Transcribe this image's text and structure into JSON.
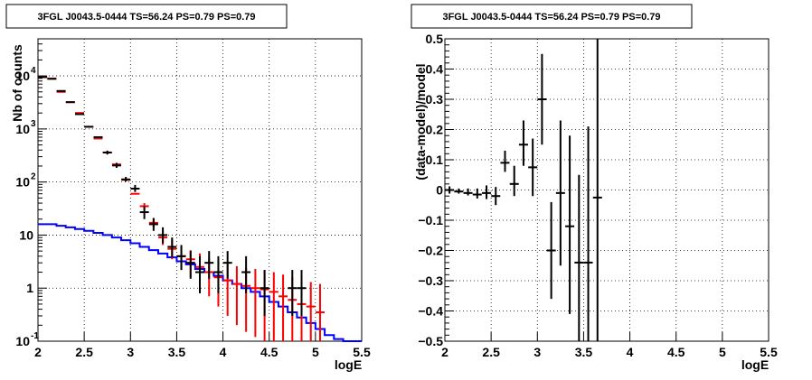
{
  "colors": {
    "data": "#000000",
    "model": "#ff0000",
    "background_model": "#0000ff",
    "grid": "#000000",
    "frame": "#000000"
  },
  "chart_data": [
    {
      "type": "line",
      "title": "3FGL J0043.5-0444 TS=56.24 PS=0.79 PS=0.79",
      "xlabel": "logE",
      "ylabel": "Nb of counts",
      "xlim": [
        2,
        5.5
      ],
      "ylim": [
        0.1,
        50000
      ],
      "yscale": "log",
      "grid": true,
      "x_ticks": [
        "2",
        "2.5",
        "3",
        "3.5",
        "4",
        "4.5",
        "5",
        "5.5"
      ],
      "y_ticks": [
        {
          "value": 0.1,
          "label": "10",
          "exp": "-1"
        },
        {
          "value": 1,
          "label": "1",
          "exp": ""
        },
        {
          "value": 10,
          "label": "10",
          "exp": ""
        },
        {
          "value": 100,
          "label": "10",
          "exp": "2"
        },
        {
          "value": 1000,
          "label": "10",
          "exp": "3"
        },
        {
          "value": 10000,
          "label": "10",
          "exp": "4"
        }
      ],
      "series": [
        {
          "kind": "data_points",
          "color": "#000000",
          "x": [
            2.05,
            2.15,
            2.25,
            2.35,
            2.45,
            2.55,
            2.65,
            2.75,
            2.85,
            2.95,
            3.05,
            3.15,
            3.25,
            3.35,
            3.45,
            3.55,
            3.65,
            3.75,
            3.85,
            3.95,
            4.05,
            4.25,
            4.45,
            4.75,
            4.85
          ],
          "y": [
            9500,
            8800,
            5200,
            3200,
            1900,
            1100,
            700,
            360,
            205,
            112,
            75,
            27,
            16,
            10,
            6,
            4,
            3,
            2,
            3,
            2,
            3,
            2,
            1,
            1,
            1
          ],
          "y_low": [
            null,
            null,
            null,
            null,
            null,
            null,
            null,
            330,
            185,
            102,
            65,
            20,
            12,
            7,
            3.8,
            2.2,
            1.5,
            0.8,
            1.5,
            0.8,
            1.5,
            0.8,
            0.3,
            0.3,
            0.3
          ],
          "y_high": [
            null,
            null,
            null,
            null,
            null,
            null,
            null,
            390,
            230,
            125,
            88,
            35,
            21,
            14,
            9,
            6.5,
            5,
            4,
            5,
            4,
            5,
            4,
            2.2,
            2.2,
            2.2
          ]
        },
        {
          "kind": "model_points",
          "color": "#ff0000",
          "x": [
            2.05,
            2.15,
            2.25,
            2.35,
            2.45,
            2.55,
            2.65,
            2.75,
            2.85,
            2.95,
            3.05,
            3.15,
            3.25,
            3.35,
            3.45,
            3.55,
            3.65,
            3.75,
            3.85,
            3.95,
            4.05,
            4.15,
            4.25,
            4.35,
            4.45,
            4.55,
            4.65,
            4.75,
            4.85,
            4.95,
            5.05
          ],
          "y": [
            9500,
            8900,
            5000,
            3200,
            2000,
            1100,
            660,
            360,
            215,
            110,
            60,
            35,
            17,
            9,
            5.5,
            4,
            3.5,
            2.5,
            2,
            1.6,
            1.4,
            1.2,
            1.1,
            1,
            0.95,
            0.85,
            0.7,
            0.6,
            0.5,
            0.45,
            0.35
          ],
          "y_low": [
            null,
            null,
            null,
            null,
            null,
            null,
            null,
            null,
            null,
            null,
            null,
            30,
            14,
            6.5,
            3.5,
            2.2,
            1.6,
            1.0,
            0.7,
            0.45,
            0.3,
            0.2,
            0.15,
            0.12,
            0.1,
            0.1,
            0.1,
            0.1,
            0.1,
            0.1,
            0.1
          ],
          "y_high": [
            null,
            null,
            null,
            null,
            null,
            null,
            null,
            null,
            null,
            null,
            null,
            40,
            21,
            12,
            8,
            6,
            5.2,
            4.5,
            3.7,
            3.2,
            2.8,
            2.6,
            2.4,
            2.3,
            2.2,
            2.0,
            1.8,
            1.6,
            1.4,
            1.3,
            1.2
          ]
        },
        {
          "kind": "background_step",
          "color": "#0000ff",
          "edges": [
            2.0,
            2.1,
            2.2,
            2.3,
            2.4,
            2.5,
            2.6,
            2.7,
            2.8,
            2.9,
            3.0,
            3.1,
            3.2,
            3.3,
            3.4,
            3.5,
            3.6,
            3.7,
            3.8,
            3.9,
            4.0,
            4.1,
            4.2,
            4.3,
            4.4,
            4.5,
            4.6,
            4.7,
            4.8,
            4.9,
            5.0,
            5.1,
            5.2,
            5.3,
            5.4,
            5.5
          ],
          "values": [
            16,
            16,
            15,
            14,
            13,
            12,
            11,
            10,
            9,
            8,
            7,
            6,
            5.2,
            4.5,
            3.8,
            3.2,
            2.8,
            2.3,
            2,
            1.7,
            1.4,
            1.2,
            1.0,
            0.85,
            0.7,
            0.55,
            0.45,
            0.35,
            0.28,
            0.22,
            0.17,
            0.13,
            0.11,
            0.1,
            0.1
          ]
        }
      ]
    },
    {
      "type": "scatter",
      "title": "3FGL J0043.5-0444 TS=56.24 PS=0.79 PS=0.79",
      "xlabel": "logE",
      "ylabel": "(data-model)/model",
      "xlim": [
        2,
        5.5
      ],
      "ylim": [
        -0.5,
        0.5
      ],
      "grid": true,
      "x_ticks": [
        "2",
        "2.5",
        "3",
        "3.5",
        "4",
        "4.5",
        "5",
        "5.5"
      ],
      "y_ticks": [
        "-0.5",
        "-0.4",
        "-0.3",
        "-0.2",
        "-0.1",
        "0",
        "0.1",
        "0.2",
        "0.3",
        "0.4",
        "0.5"
      ],
      "series": [
        {
          "color": "#000000",
          "x": [
            2.05,
            2.15,
            2.25,
            2.35,
            2.45,
            2.55,
            2.65,
            2.75,
            2.85,
            2.95,
            3.05,
            3.15,
            3.25,
            3.35,
            3.45,
            3.55,
            3.65
          ],
          "y": [
            0.0,
            -0.005,
            -0.01,
            -0.015,
            -0.01,
            -0.02,
            0.09,
            0.02,
            0.15,
            0.075,
            0.3,
            -0.2,
            -0.01,
            -0.12,
            -0.24,
            -0.24,
            -0.025
          ],
          "y_low": [
            -0.012,
            -0.012,
            -0.018,
            -0.028,
            -0.03,
            -0.05,
            0.06,
            -0.02,
            0.08,
            -0.02,
            0.15,
            -0.36,
            -0.25,
            -0.41,
            -0.5,
            -0.5,
            -0.5
          ],
          "y_high": [
            0.012,
            0.005,
            0.005,
            0.005,
            0.015,
            0.01,
            0.13,
            0.08,
            0.23,
            0.17,
            0.45,
            -0.04,
            0.23,
            0.18,
            0.05,
            0.21,
            0.5
          ]
        }
      ]
    }
  ]
}
